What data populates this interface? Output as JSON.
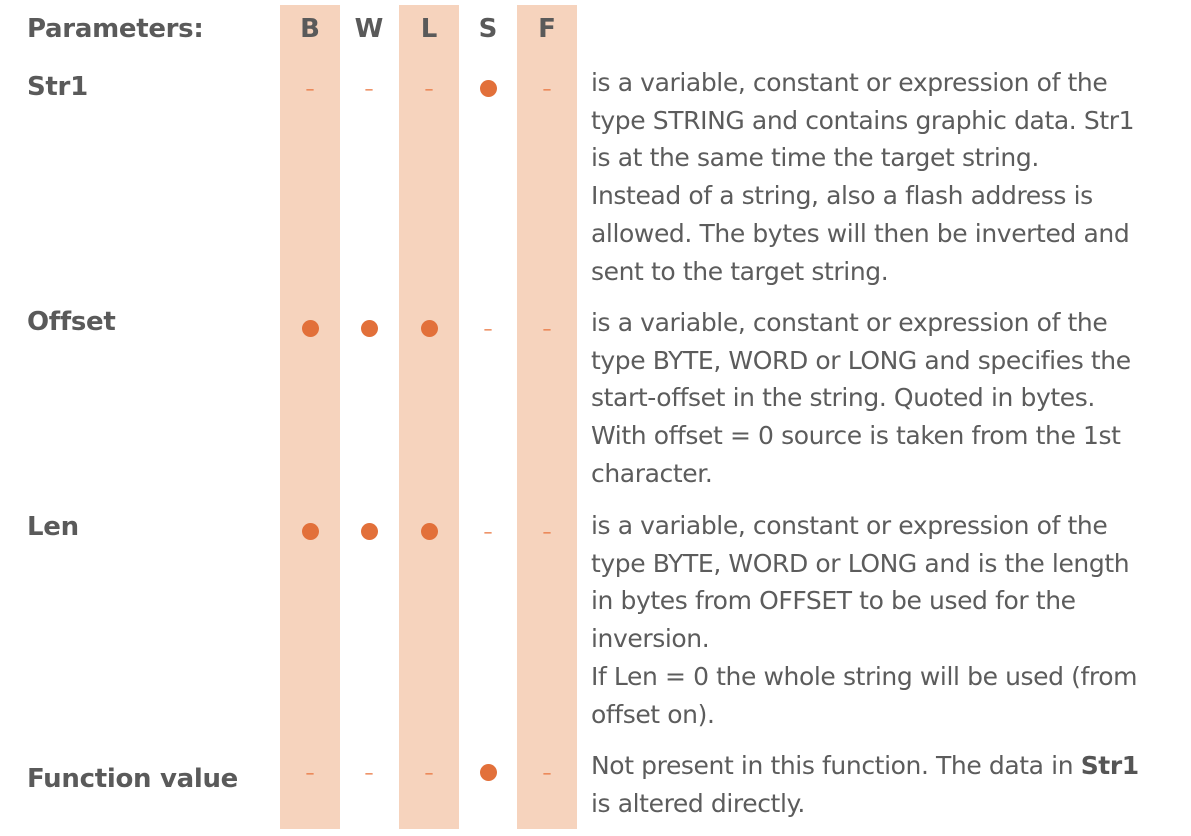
{
  "header": {
    "label": "Parameters:",
    "columns": [
      "B",
      "W",
      "L",
      "S",
      "F"
    ]
  },
  "colors": {
    "band": "#f6d3bd",
    "marker": "#e2703a",
    "text": "#5a5a5a"
  },
  "rows": [
    {
      "name": "Str1",
      "marks": [
        "dash",
        "dash",
        "dash",
        "dot",
        "dash"
      ],
      "lines": [
        "is a variable, constant or expression of the",
        "type  STRING and contains graphic data. Str1",
        "is at the same time the target string.",
        "Instead of a string, also a flash address is",
        "allowed. The bytes will then be inverted and",
        "sent to the target string."
      ]
    },
    {
      "name": "Offset",
      "marks": [
        "dot",
        "dot",
        "dot",
        "dash",
        "dash"
      ],
      "lines": [
        "is a variable, constant or expression of the",
        "type BYTE, WORD or LONG and specifies the",
        "start-offset in the string. Quoted in bytes.",
        "With offset = 0 source is taken from the 1st",
        "character."
      ]
    },
    {
      "name": "Len",
      "marks": [
        "dot",
        "dot",
        "dot",
        "dash",
        "dash"
      ],
      "lines": [
        "is a variable, constant or expression of the",
        "type BYTE, WORD or LONG and is the length",
        "in bytes from OFFSET to be used for the",
        "inversion.",
        "If Len = 0 the whole string will be used (from",
        "offset on)."
      ]
    },
    {
      "name": "Function value",
      "marks": [
        "dash",
        "dash",
        "dash",
        "dot",
        "dash"
      ],
      "line1_text": "Not present in this function. The data in ",
      "line1_bold": "Str1",
      "line2": "is altered directly."
    }
  ]
}
